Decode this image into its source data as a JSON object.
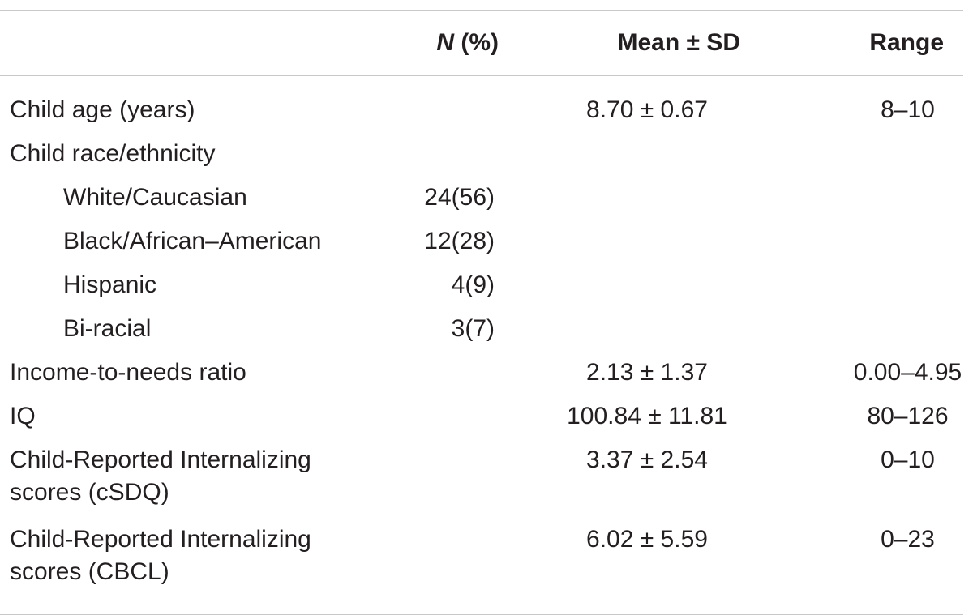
{
  "header": {
    "col_n_italic": "N",
    "col_n_suffix": " (%)",
    "col_mean": "Mean ± SD",
    "col_range": "Range"
  },
  "rows": [
    {
      "label": "Child age (years)",
      "n": "",
      "mean": "8.70 ± 0.67",
      "range": "8–10"
    },
    {
      "label": "Child race/ethnicity",
      "n": "",
      "mean": "",
      "range": ""
    },
    {
      "label": "White/Caucasian",
      "n": "24(56)",
      "mean": "",
      "range": ""
    },
    {
      "label": "Black/African–American",
      "n": "12(28)",
      "mean": "",
      "range": ""
    },
    {
      "label": "Hispanic",
      "n": "4(9)",
      "mean": "",
      "range": ""
    },
    {
      "label": "Bi-racial",
      "n": "3(7)",
      "mean": "",
      "range": ""
    },
    {
      "label": "Income-to-needs ratio",
      "n": "",
      "mean": "2.13 ± 1.37",
      "range": "0.00–4.95"
    },
    {
      "label": "IQ",
      "n": "",
      "mean": "100.84 ± 11.81",
      "range": "80–126"
    },
    {
      "label_line1": "Child-Reported Internalizing",
      "label_line2": "scores (cSDQ)",
      "n": "",
      "mean": "3.37 ± 2.54",
      "range": "0–10"
    },
    {
      "label_line1": "Child-Reported Internalizing",
      "label_line2": "scores (CBCL)",
      "n": "",
      "mean": "6.02 ± 5.59",
      "range": "0–23"
    }
  ]
}
